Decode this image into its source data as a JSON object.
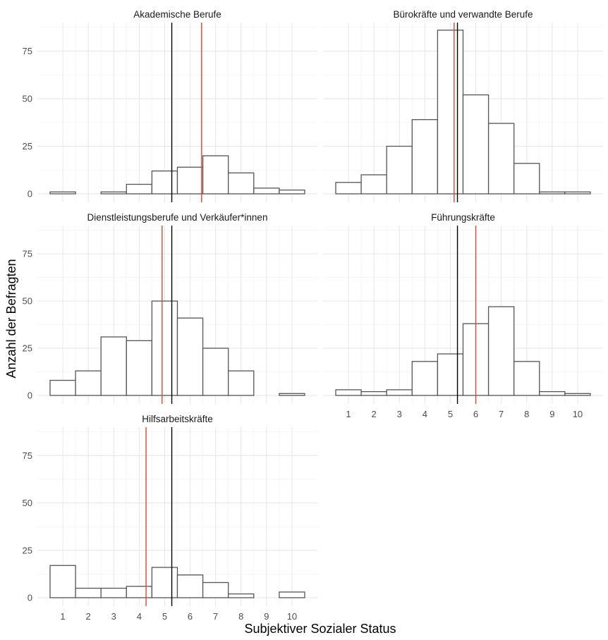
{
  "ylabel": "Anzahl der Befragten",
  "xlabel": "Subjektiver Sozialer Status",
  "colors": {
    "median_line": "#000000",
    "mean_line": "#e8432d",
    "bar_fill": "#ffffff",
    "bar_stroke": "#555555"
  },
  "chart_data": {
    "type": "bar",
    "facet_order": [
      "Akademische Berufe",
      "Bürokräfte und verwandte Berufe",
      "Dienstleistungsberufe und Verkäufer*innen",
      "Führungskräfte",
      "Hilfsarbeitskräfte"
    ],
    "x_ticks": [
      "1",
      "2",
      "3",
      "4",
      "5",
      "6",
      "7",
      "8",
      "9",
      "10"
    ],
    "y_ticks": [
      "0",
      "25",
      "50",
      "75"
    ],
    "ylim": [
      0,
      90
    ],
    "xlim": [
      0.5,
      10.5
    ],
    "grid": true,
    "panels": [
      {
        "title": "Akademische Berufe",
        "bins": [
          "0.5-1.5",
          "1.5-2.5",
          "2.5-3.5",
          "3.5-4.5",
          "4.5-5.5",
          "5.5-6.5",
          "6.5-7.5",
          "7.5-8.5",
          "8.5-9.5",
          "9.5-10.5"
        ],
        "values": [
          1,
          0,
          1,
          5,
          12,
          14,
          20,
          11,
          3,
          2
        ],
        "black_line_x": 5.28,
        "red_line_x": 6.45
      },
      {
        "title": "Bürokräfte und verwandte Berufe",
        "values": [
          6,
          10,
          25,
          39,
          86,
          52,
          37,
          16,
          1,
          1
        ],
        "black_line_x": 5.28,
        "red_line_x": 5.15
      },
      {
        "title": "Dienstleistungsberufe und Verkäufer*innen",
        "values": [
          8,
          13,
          31,
          29,
          50,
          41,
          25,
          13,
          0,
          1
        ],
        "black_line_x": 5.28,
        "red_line_x": 4.9
      },
      {
        "title": "Führungskräfte",
        "values": [
          3,
          2,
          3,
          18,
          22,
          38,
          47,
          18,
          2,
          1
        ],
        "black_line_x": 5.28,
        "red_line_x": 6.0
      },
      {
        "title": "Hilfsarbeitskräfte",
        "values": [
          17,
          5,
          5,
          6,
          16,
          12,
          8,
          2,
          0,
          3
        ],
        "black_line_x": 5.28,
        "red_line_x": 4.27
      }
    ]
  }
}
